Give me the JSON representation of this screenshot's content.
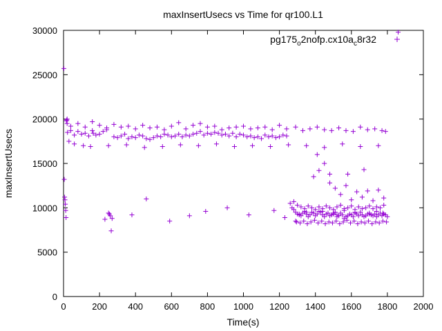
{
  "chart_data": {
    "type": "scatter",
    "title": "maxInsertUsecs vs Time for qr100.L1",
    "xlabel": "Time(s)",
    "ylabel": "maxInsertUsecs",
    "xlim": [
      0,
      2000
    ],
    "ylim": [
      0,
      30000
    ],
    "xticks": [
      0,
      200,
      400,
      600,
      800,
      1000,
      1200,
      1400,
      1600,
      1800,
      2000
    ],
    "yticks": [
      0,
      5000,
      10000,
      15000,
      20000,
      25000,
      30000
    ],
    "grid": false,
    "legend_position": "top-right",
    "marker": "plus",
    "color": "#9400d3",
    "series": [
      {
        "name_parts": [
          "pg175",
          "o",
          "2nofp.cx10a",
          "c",
          "8r32"
        ],
        "x": [
          2,
          4,
          6,
          8,
          10,
          12,
          14,
          16,
          18,
          20,
          22,
          40,
          60,
          80,
          100,
          120,
          140,
          160,
          165,
          180,
          200,
          220,
          240,
          250,
          255,
          260,
          265,
          270,
          280,
          300,
          320,
          340,
          360,
          380,
          400,
          420,
          440,
          460,
          480,
          500,
          520,
          540,
          560,
          580,
          600,
          620,
          640,
          660,
          680,
          700,
          720,
          740,
          760,
          780,
          800,
          820,
          840,
          860,
          880,
          900,
          920,
          940,
          960,
          980,
          1000,
          1020,
          1040,
          1060,
          1080,
          1100,
          1120,
          1140,
          1160,
          1180,
          1200,
          1220,
          1240,
          1260,
          1270,
          1280,
          1290,
          1300,
          1310,
          1320,
          1330,
          1340,
          1350,
          1360,
          1370,
          1380,
          1390,
          1400,
          1410,
          1420,
          1430,
          1440,
          1450,
          1460,
          1470,
          1480,
          1490,
          1500,
          1510,
          1520,
          1530,
          1540,
          1550,
          1560,
          1570,
          1580,
          1590,
          1600,
          1610,
          1620,
          1630,
          1640,
          1650,
          1660,
          1670,
          1680,
          1690,
          1700,
          1710,
          1720,
          1730,
          1740,
          1750,
          1760,
          1770,
          1780,
          1790,
          1800,
          1860,
          40,
          80,
          120,
          160,
          200,
          240,
          280,
          320,
          360,
          400,
          440,
          480,
          520,
          560,
          600,
          640,
          680,
          720,
          760,
          800,
          840,
          880,
          920,
          960,
          1000,
          1040,
          1080,
          1120,
          1160,
          1200,
          1240,
          1290,
          1330,
          1370,
          1410,
          1450,
          1490,
          1530,
          1570,
          1610,
          1650,
          1690,
          1730,
          1770,
          1790,
          60,
          150,
          250,
          350,
          450,
          550,
          650,
          750,
          850,
          950,
          1050,
          1150,
          1250,
          1350,
          1450,
          1550,
          1650,
          1750,
          1280,
          1300,
          1320,
          1340,
          1360,
          1380,
          1400,
          1420,
          1440,
          1460,
          1480,
          1500,
          1520,
          1540,
          1560,
          1580,
          1600,
          1620,
          1640,
          1660,
          1680,
          1700,
          1720,
          1740,
          1760,
          1780,
          1295,
          1315,
          1335,
          1355,
          1375,
          1395,
          1415,
          1435,
          1455,
          1475,
          1495,
          1515,
          1535,
          1555,
          1575,
          1595,
          1615,
          1635,
          1655,
          1675,
          1695,
          1715,
          1735,
          1755,
          1775,
          1795,
          1390,
          1420,
          1450,
          1480,
          1510,
          1540,
          1570,
          1600,
          1630,
          1660,
          1690,
          1720,
          1750,
          1780,
          1310,
          1350,
          1440,
          1500,
          1520,
          1560,
          1620,
          1700,
          1740,
          1775,
          1290,
          1410,
          1480,
          1580,
          1670,
          20,
          30,
          110,
          230,
          380,
          460,
          590,
          700,
          790,
          910,
          1030,
          1170,
          1230
        ],
        "y": [
          25700,
          13200,
          11200,
          10900,
          10400,
          9700,
          8900,
          19800,
          19900,
          20000,
          18500,
          18700,
          18200,
          18600,
          18300,
          18400,
          18100,
          18700,
          18400,
          18200,
          18300,
          18600,
          18800,
          9400,
          9300,
          9100,
          7400,
          8800,
          18000,
          17900,
          18100,
          18300,
          17800,
          18000,
          17900,
          18200,
          18100,
          17800,
          17700,
          17900,
          18100,
          18000,
          18300,
          18200,
          18000,
          18100,
          18300,
          18000,
          18200,
          18100,
          18300,
          18400,
          18600,
          18200,
          18400,
          18300,
          18500,
          18400,
          18200,
          18300,
          18100,
          18400,
          18000,
          18300,
          18200,
          18000,
          18100,
          17900,
          18000,
          17800,
          18200,
          18000,
          18100,
          17900,
          18000,
          18200,
          18100,
          10500,
          10000,
          9800,
          9500,
          9300,
          9200,
          9100,
          9400,
          9600,
          9300,
          9000,
          9200,
          9500,
          9400,
          9100,
          9300,
          9600,
          9500,
          9200,
          9000,
          9300,
          9400,
          9100,
          9200,
          9300,
          9500,
          9000,
          9100,
          9400,
          9200,
          8800,
          9000,
          9100,
          9300,
          9200,
          9000,
          9400,
          9300,
          9100,
          9500,
          9200,
          9000,
          9100,
          9300,
          9400,
          9200,
          9100,
          9300,
          9000,
          9200,
          9400,
          9100,
          9300,
          9200,
          9000,
          29800,
          19200,
          19500,
          19100,
          19700,
          19300,
          19000,
          19400,
          19100,
          19200,
          18900,
          19300,
          19000,
          19100,
          18800,
          19200,
          19600,
          18900,
          19300,
          19500,
          19100,
          19200,
          18800,
          19000,
          19100,
          19200,
          18900,
          19000,
          19100,
          18800,
          19300,
          18900,
          19100,
          18700,
          18900,
          19100,
          18800,
          18700,
          19000,
          18700,
          18600,
          19100,
          18800,
          18900,
          18700,
          18600,
          17200,
          16900,
          17000,
          17100,
          16800,
          16900,
          17100,
          17000,
          17200,
          16900,
          17000,
          16900,
          17100,
          17000,
          16800,
          17200,
          16900,
          17000,
          10700,
          10300,
          10100,
          9900,
          10200,
          10000,
          9800,
          10100,
          9900,
          10200,
          10000,
          9800,
          10100,
          10300,
          9900,
          10000,
          10200,
          9800,
          10100,
          9900,
          10000,
          10200,
          9900,
          10100,
          10000,
          10300,
          8400,
          8300,
          8500,
          8200,
          8400,
          8600,
          8300,
          8500,
          8200,
          8400,
          8300,
          8500,
          8200,
          8400,
          8600,
          8300,
          8500,
          8200,
          8400,
          8300,
          8500,
          8200,
          8400,
          8300,
          8500,
          8400,
          13500,
          14200,
          15000,
          13800,
          12200,
          11500,
          12500,
          10900,
          11800,
          11200,
          11900,
          10800,
          12000,
          11100,
          9300,
          9500,
          9600,
          9400,
          9200,
          9700,
          9500,
          9300,
          9600,
          9400,
          8500,
          16000,
          12800,
          13800,
          14300,
          19500,
          17500,
          17000,
          8700,
          9200,
          11000,
          8500,
          9100,
          9600,
          10000,
          9200,
          9700,
          8900
        ]
      }
    ]
  }
}
